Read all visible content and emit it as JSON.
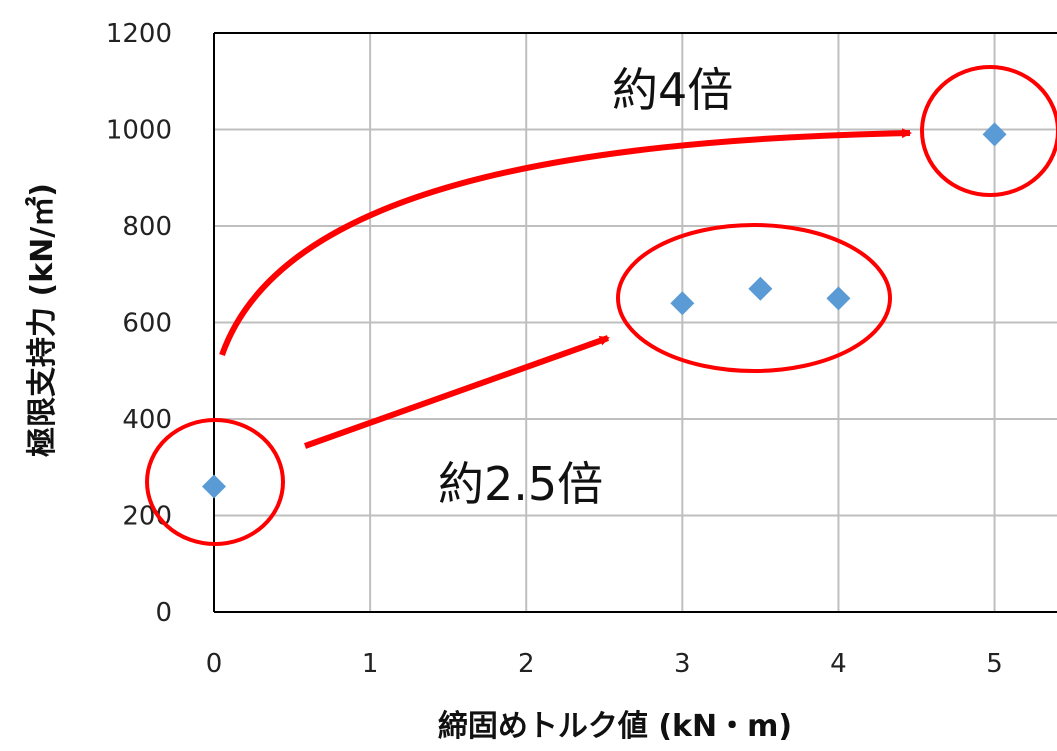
{
  "chart_data": {
    "type": "scatter",
    "x": [
      0,
      3,
      3.5,
      4,
      5
    ],
    "y": [
      260,
      640,
      670,
      650,
      990
    ],
    "xlabel": "締固めトルク値 (kN・m)",
    "ylabel": "極限支持力 (kN/㎡)",
    "xticks": [
      "0",
      "1",
      "2",
      "3",
      "4",
      "5"
    ],
    "yticks": [
      "0",
      "200",
      "400",
      "600",
      "800",
      "1000",
      "1200"
    ],
    "xlim": [
      0,
      5.4
    ],
    "ylim": [
      0,
      1200
    ],
    "grid": true,
    "marker_color": "#5b9bd5",
    "annotation_color": "#ff0000",
    "annotations": [
      {
        "text": "約4倍"
      },
      {
        "text": "約2.5倍"
      }
    ]
  }
}
